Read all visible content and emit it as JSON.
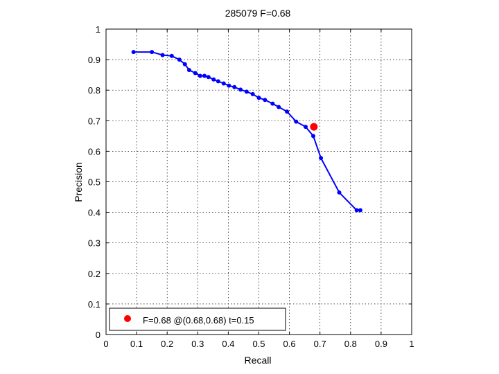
{
  "chart_data": {
    "type": "line",
    "title": "285079 F=0.68",
    "xlabel": "Recall",
    "ylabel": "Precision",
    "xlim": [
      0,
      1
    ],
    "ylim": [
      0,
      1
    ],
    "xticks": [
      "0",
      "0.1",
      "0.2",
      "0.3",
      "0.4",
      "0.5",
      "0.6",
      "0.7",
      "0.8",
      "0.9",
      "1"
    ],
    "yticks": [
      "0",
      "0.1",
      "0.2",
      "0.3",
      "0.4",
      "0.5",
      "0.6",
      "0.7",
      "0.8",
      "0.9",
      "1"
    ],
    "grid": true,
    "legend_position": "bottom-left",
    "series": [
      {
        "color": "#0000ff",
        "x": [
          0.09,
          0.15,
          0.185,
          0.215,
          0.24,
          0.258,
          0.272,
          0.292,
          0.308,
          0.322,
          0.335,
          0.352,
          0.367,
          0.385,
          0.402,
          0.42,
          0.44,
          0.46,
          0.48,
          0.5,
          0.52,
          0.545,
          0.565,
          0.592,
          0.622,
          0.653,
          0.678,
          0.703,
          0.763,
          0.82,
          0.832
        ],
        "y": [
          0.925,
          0.925,
          0.915,
          0.912,
          0.9,
          0.885,
          0.866,
          0.856,
          0.847,
          0.847,
          0.843,
          0.835,
          0.829,
          0.822,
          0.815,
          0.81,
          0.802,
          0.795,
          0.787,
          0.775,
          0.768,
          0.756,
          0.745,
          0.73,
          0.697,
          0.68,
          0.65,
          0.578,
          0.465,
          0.407,
          0.407
        ]
      }
    ],
    "best_point": {
      "x": 0.68,
      "y": 0.68,
      "color": "#ff0000",
      "legend": "F=0.68 @(0.68,0.68) t=0.15"
    }
  }
}
